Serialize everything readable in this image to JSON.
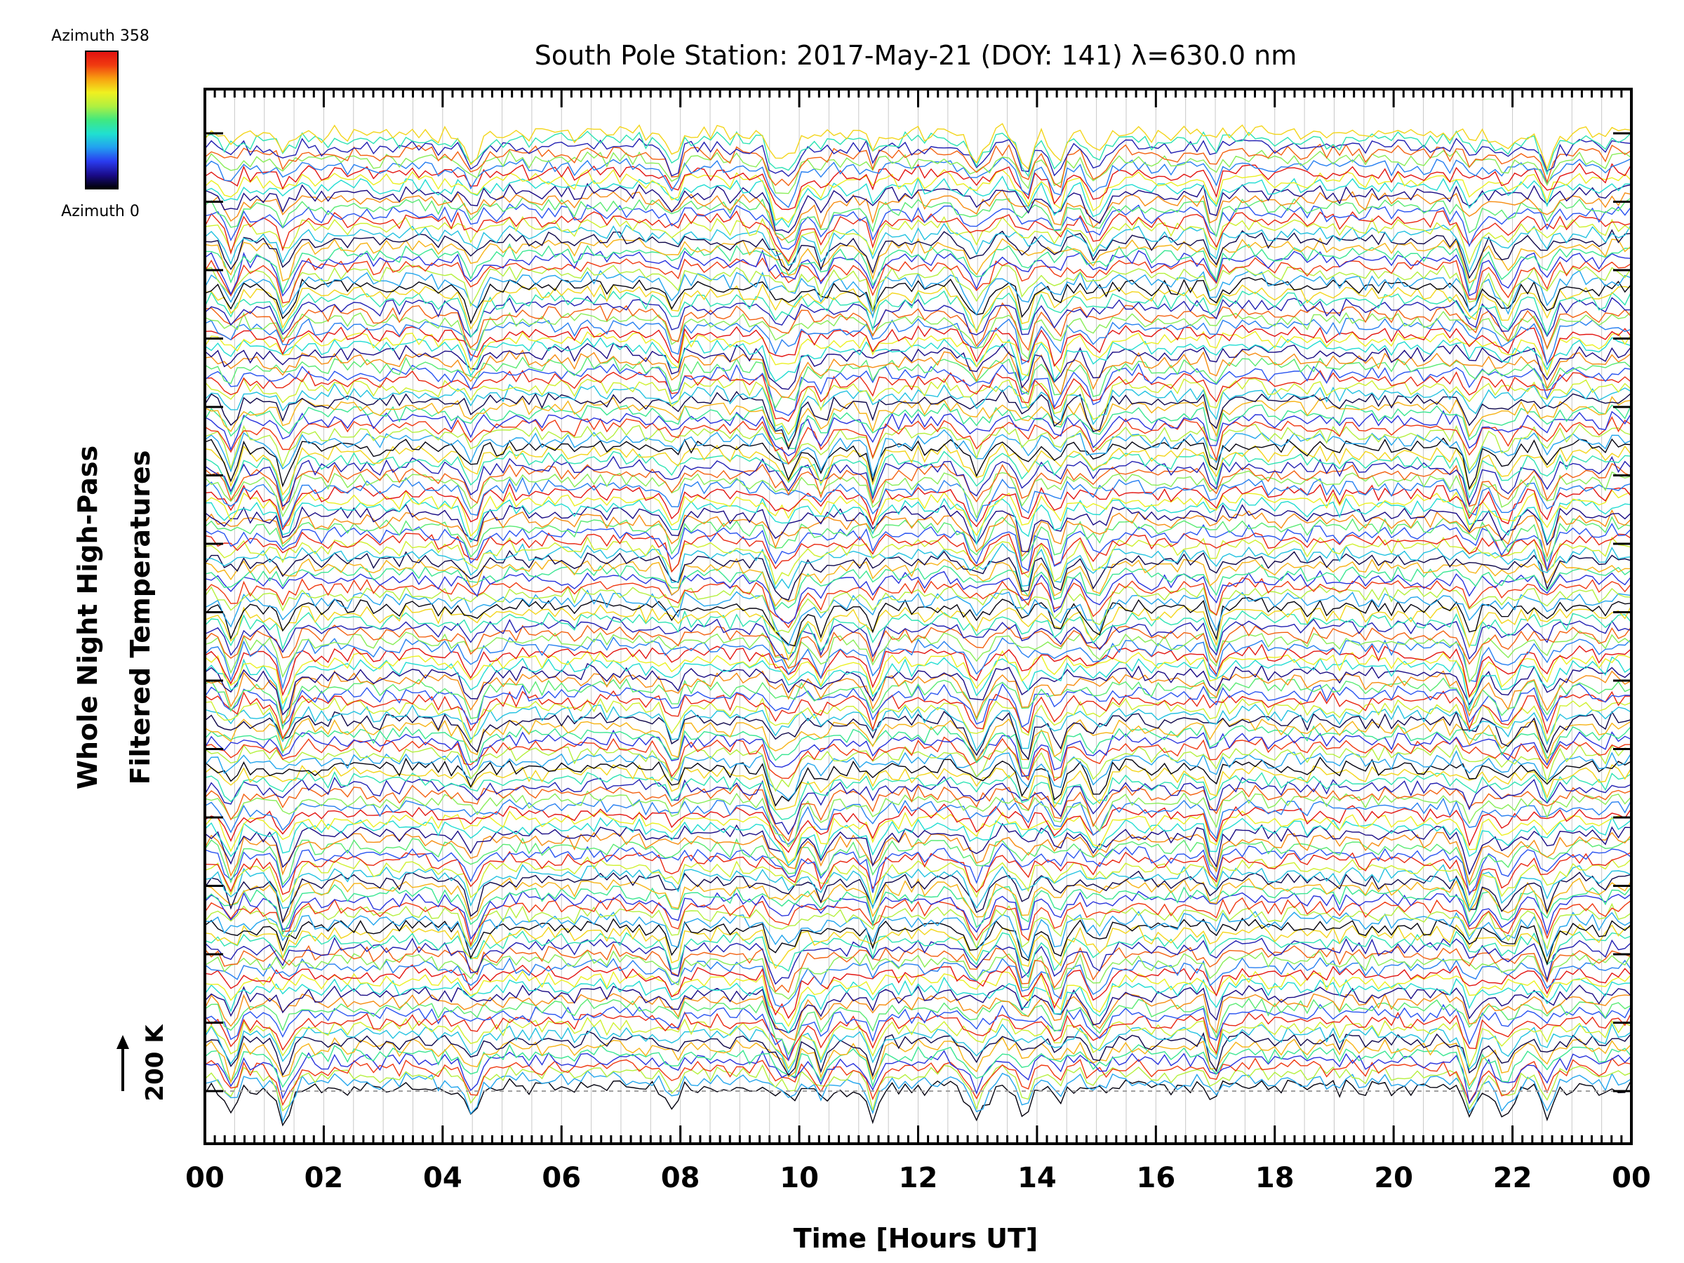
{
  "chart_data": {
    "type": "line",
    "title": "South Pole Station: 2017-May-21 (DOY: 141) λ=630.0 nm",
    "xlabel": "Time [Hours UT]",
    "ylabel_line1": "Whole Night High-Pass",
    "ylabel_line2": "Filtered Temperatures",
    "scale_bar_label": "200 K",
    "x_range_hours": [
      0,
      24
    ],
    "x_ticks": [
      "00",
      "02",
      "04",
      "06",
      "08",
      "10",
      "12",
      "14",
      "16",
      "18",
      "20",
      "22",
      "00"
    ],
    "vertical_grid": true,
    "baseline_dashed": true,
    "colorbar": {
      "top_label": "Azimuth 358",
      "bottom_label": "Azimuth 0",
      "colormap": "rainbow",
      "stops": [
        "#000000",
        "#1a0b8a",
        "#2a3cf0",
        "#22a0f0",
        "#20e0d0",
        "#40e880",
        "#b0f040",
        "#f0f020",
        "#f8a010",
        "#f03a10",
        "#e01010"
      ]
    },
    "series_count": 144,
    "series_style": "stacked, offset traces colored by azimuth (0 to 358 deg)",
    "dip_events_hours": [
      0.45,
      1.35,
      4.5,
      7.9,
      9.6,
      9.85,
      10.4,
      11.25,
      13.0,
      13.8,
      14.35,
      15.0,
      17.0,
      21.3,
      21.9,
      22.6
    ],
    "colors": {
      "axis": "#000000",
      "grid": "#c8c8c8",
      "baseline": "#a0a0a0"
    }
  }
}
